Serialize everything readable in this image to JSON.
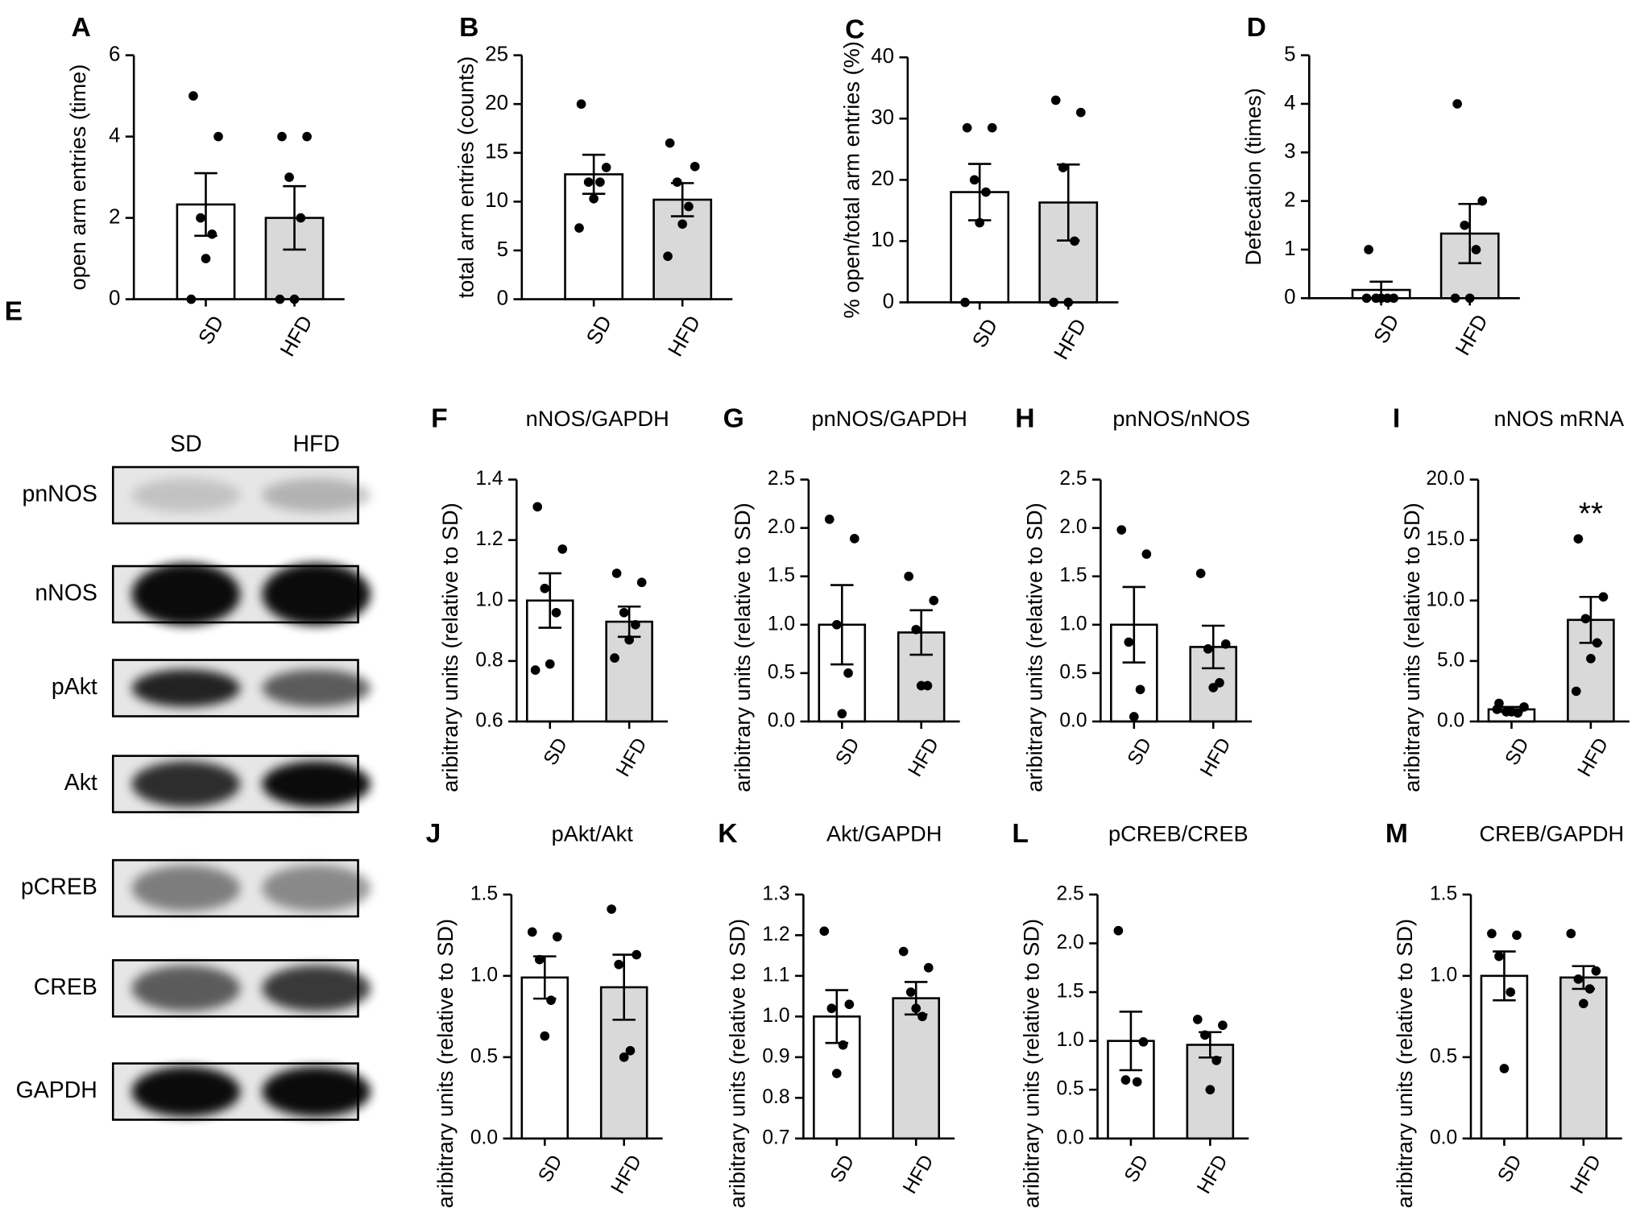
{
  "chart_data": [
    {
      "type": "bar",
      "panel": "A",
      "ylabel": "open arm entries (time)",
      "categories": [
        "SD",
        "HFD"
      ],
      "colors": [
        "#ffffff",
        "#d9d9d9"
      ],
      "values": [
        2.33,
        2.0
      ],
      "errors": [
        0.77,
        0.78
      ],
      "points": [
        [
          5,
          4,
          2,
          1.6,
          1,
          0
        ],
        [
          4,
          4,
          3,
          2,
          0,
          0
        ]
      ],
      "ylim": [
        0,
        6
      ],
      "yticks": [
        0,
        2,
        4,
        6
      ]
    },
    {
      "type": "bar",
      "panel": "B",
      "ylabel": "total arm entries (counts)",
      "categories": [
        "SD",
        "HFD"
      ],
      "colors": [
        "#ffffff",
        "#d9d9d9"
      ],
      "values": [
        12.8,
        10.2
      ],
      "errors": [
        2.0,
        1.7
      ],
      "points": [
        [
          20,
          13.5,
          12,
          12,
          10.3,
          7.3
        ],
        [
          16,
          13.6,
          12,
          9.5,
          7.7,
          4.4
        ]
      ],
      "ylim": [
        0,
        25
      ],
      "yticks": [
        0,
        5,
        10,
        15,
        20,
        25
      ]
    },
    {
      "type": "bar",
      "panel": "C",
      "ylabel": "% open/total arm entries (%)",
      "categories": [
        "SD",
        "HFD"
      ],
      "colors": [
        "#ffffff",
        "#d9d9d9"
      ],
      "values": [
        18,
        16.3
      ],
      "errors": [
        4.6,
        6.2
      ],
      "points": [
        [
          28.5,
          28.5,
          20,
          18,
          13,
          0
        ],
        [
          33,
          31,
          22,
          10,
          0,
          0
        ]
      ],
      "ylim": [
        0,
        40
      ],
      "yticks": [
        0,
        10,
        20,
        30,
        40
      ]
    },
    {
      "type": "bar",
      "panel": "D",
      "ylabel": "Defecation (times)",
      "categories": [
        "SD",
        "HFD"
      ],
      "colors": [
        "#ffffff",
        "#d9d9d9"
      ],
      "values": [
        0.17,
        1.33
      ],
      "errors": [
        0.17,
        0.61
      ],
      "points": [
        [
          1,
          0,
          0,
          0,
          0,
          0
        ],
        [
          4,
          2,
          1.5,
          1,
          0,
          0
        ]
      ],
      "ylim": [
        0,
        5
      ],
      "yticks": [
        0,
        1,
        2,
        3,
        4,
        5
      ]
    },
    {
      "type": "bar",
      "panel": "F",
      "title": "nNOS/GAPDH",
      "ylabel": "aribitrary units (relative to SD)",
      "categories": [
        "SD",
        "HFD"
      ],
      "colors": [
        "#ffffff",
        "#d9d9d9"
      ],
      "values": [
        1.0,
        0.93
      ],
      "errors": [
        0.09,
        0.05
      ],
      "points": [
        [
          1.31,
          1.17,
          1.04,
          0.96,
          0.79,
          0.77
        ],
        [
          1.09,
          1.06,
          0.96,
          0.92,
          0.87,
          0.81
        ]
      ],
      "ylim": [
        0.6,
        1.4
      ],
      "yticks": [
        0.6,
        0.8,
        {
          "value": 1,
          "label": "1.0"
        },
        1.2,
        1.4
      ]
    },
    {
      "type": "bar",
      "panel": "G",
      "title": "pnNOS/GAPDH",
      "ylabel": "aribitrary units (relative to SD)",
      "categories": [
        "SD",
        "HFD"
      ],
      "colors": [
        "#ffffff",
        "#d9d9d9"
      ],
      "values": [
        1.0,
        0.92
      ],
      "errors": [
        0.41,
        0.23
      ],
      "points": [
        [
          2.09,
          1.89,
          1.0,
          0.5,
          0.08
        ],
        [
          1.5,
          1.25,
          0.95,
          0.37,
          0.37
        ]
      ],
      "ylim": [
        0,
        2.5
      ],
      "yticks": [
        {
          "value": 0,
          "label": "0.0"
        },
        0.5,
        {
          "value": 1,
          "label": "1.0"
        },
        1.5,
        {
          "value": 2,
          "label": "2.0"
        },
        2.5
      ]
    },
    {
      "type": "bar",
      "panel": "H",
      "title": "pnNOS/nNOS",
      "ylabel": "aribitrary units (relative to SD)",
      "categories": [
        "SD",
        "HFD"
      ],
      "colors": [
        "#ffffff",
        "#d9d9d9"
      ],
      "values": [
        1.0,
        0.77
      ],
      "errors": [
        0.39,
        0.22
      ],
      "points": [
        [
          1.98,
          1.73,
          0.82,
          0.33,
          0.05
        ],
        [
          1.53,
          0.8,
          0.75,
          0.4,
          0.35
        ]
      ],
      "ylim": [
        0,
        2.5
      ],
      "yticks": [
        {
          "value": 0,
          "label": "0.0"
        },
        0.5,
        {
          "value": 1,
          "label": "1.0"
        },
        1.5,
        {
          "value": 2,
          "label": "2.0"
        },
        2.5
      ]
    },
    {
      "type": "bar",
      "panel": "I",
      "title": "nNOS mRNA",
      "ylabel": "aribitrary units (relative to SD)",
      "categories": [
        "SD",
        "HFD"
      ],
      "colors": [
        "#ffffff",
        "#d9d9d9"
      ],
      "values": [
        1.0,
        8.4
      ],
      "errors": [
        0.2,
        1.9
      ],
      "points": [
        [
          1.5,
          1.2,
          0.8,
          0.7,
          0.8,
          1.0
        ],
        [
          15.1,
          10.3,
          8.5,
          6.5,
          5.2,
          2.5
        ]
      ],
      "annotation": "**",
      "ylim": [
        0,
        20
      ],
      "yticks": [
        {
          "value": 0,
          "label": "0.0"
        },
        {
          "value": 5,
          "label": "5.0"
        },
        {
          "value": 10,
          "label": "10.0"
        },
        {
          "value": 15,
          "label": "15.0"
        },
        {
          "value": 20,
          "label": "20.0"
        }
      ]
    },
    {
      "type": "bar",
      "panel": "J",
      "title": "pAkt/Akt",
      "ylabel": "aribitrary units (relative to SD)",
      "categories": [
        "SD",
        "HFD"
      ],
      "colors": [
        "#ffffff",
        "#d9d9d9"
      ],
      "values": [
        0.99,
        0.93
      ],
      "errors": [
        0.13,
        0.2
      ],
      "points": [
        [
          1.27,
          1.24,
          1.1,
          0.85,
          0.63
        ],
        [
          1.41,
          1.13,
          1.07,
          0.54,
          0.5
        ]
      ],
      "ylim": [
        0,
        1.5
      ],
      "yticks": [
        {
          "value": 0,
          "label": "0.0"
        },
        0.5,
        {
          "value": 1,
          "label": "1.0"
        },
        1.5
      ]
    },
    {
      "type": "bar",
      "panel": "K",
      "title": "Akt/GAPDH",
      "ylabel": "aribitrary units (relative to SD)",
      "categories": [
        "SD",
        "HFD"
      ],
      "colors": [
        "#ffffff",
        "#d9d9d9"
      ],
      "values": [
        1.0,
        1.045
      ],
      "errors": [
        0.065,
        0.04
      ],
      "points": [
        [
          1.21,
          1.03,
          1.02,
          0.93,
          0.86
        ],
        [
          1.16,
          1.12,
          1.06,
          1.0,
          1.02
        ]
      ],
      "ylim": [
        0.7,
        1.3
      ],
      "yticks": [
        0.7,
        0.8,
        0.9,
        {
          "value": 1,
          "label": "1.0"
        },
        1.1,
        1.2,
        1.3
      ]
    },
    {
      "type": "bar",
      "panel": "L",
      "title": "pCREB/CREB",
      "ylabel": "aribitrary units (relative to SD)",
      "categories": [
        "SD",
        "HFD"
      ],
      "colors": [
        "#ffffff",
        "#d9d9d9"
      ],
      "values": [
        1.0,
        0.96
      ],
      "errors": [
        0.3,
        0.13
      ],
      "points": [
        [
          2.13,
          0.99,
          0.6,
          0.58
        ],
        [
          1.22,
          1.16,
          1.06,
          0.8,
          0.5
        ]
      ],
      "ylim": [
        0,
        2.5
      ],
      "yticks": [
        {
          "value": 0,
          "label": "0.0"
        },
        0.5,
        {
          "value": 1,
          "label": "1.0"
        },
        1.5,
        {
          "value": 2,
          "label": "2.0"
        },
        2.5
      ]
    },
    {
      "type": "bar",
      "panel": "M",
      "title": "CREB/GAPDH",
      "ylabel": "aribitrary units (relative to SD)",
      "categories": [
        "SD",
        "HFD"
      ],
      "colors": [
        "#ffffff",
        "#d9d9d9"
      ],
      "values": [
        1.0,
        0.99
      ],
      "errors": [
        0.15,
        0.07
      ],
      "points": [
        [
          1.26,
          1.25,
          1.12,
          0.9,
          0.43
        ],
        [
          1.26,
          1.03,
          0.98,
          0.92,
          0.83
        ]
      ],
      "ylim": [
        0,
        1.5
      ],
      "yticks": [
        {
          "value": 0,
          "label": "0.0"
        },
        0.5,
        {
          "value": 1,
          "label": "1.0"
        },
        1.5
      ]
    }
  ],
  "blot": {
    "panel": "E",
    "columns": [
      "SD",
      "HFD"
    ],
    "rows": [
      "pnNOS",
      "nNOS",
      "pAkt",
      "Akt",
      "pCREB",
      "CREB",
      "GAPDH"
    ]
  }
}
